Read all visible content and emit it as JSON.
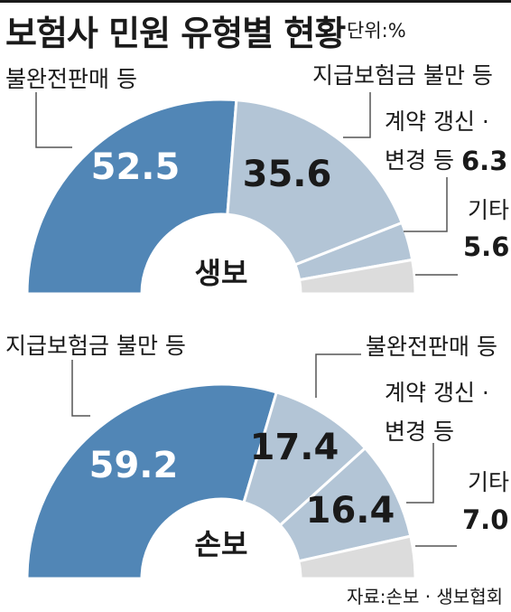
{
  "header": {
    "title": "보험사 민원 유형별 현황",
    "unit": "단위:%"
  },
  "source": "자료:손보 · 생보협회",
  "colors": {
    "dark": "#5186b6",
    "light": "#b3c5d6",
    "gray": "#dcdcdc",
    "line": "#555555"
  },
  "chart_data": [
    {
      "type": "pie",
      "center_label": "생보",
      "categories": [
        "불완전판매 등",
        "지급보험금 불만 등",
        "계약 갱신 · 변경 등",
        "기타"
      ],
      "values": [
        52.5,
        35.6,
        6.3,
        5.6
      ],
      "labels": {
        "a": "불완전판매 등",
        "b": "지급보험금 불만 등",
        "c1": "계약 갱신 ·",
        "c2": "변경 등",
        "d": "기타"
      },
      "value_text": {
        "a": "52.5",
        "b": "35.6",
        "c": "6.3",
        "d": "5.6"
      }
    },
    {
      "type": "pie",
      "center_label": "손보",
      "categories": [
        "지급보험금 불만 등",
        "불완전판매 등",
        "계약 갱신 · 변경 등",
        "기타"
      ],
      "values": [
        59.2,
        17.4,
        16.4,
        7.0
      ],
      "labels": {
        "a": "지급보험금 불만 등",
        "b": "불완전판매 등",
        "c1": "계약 갱신 ·",
        "c2": "변경 등",
        "d": "기타"
      },
      "value_text": {
        "a": "59.2",
        "b": "17.4",
        "c": "16.4",
        "d": "7.0"
      }
    }
  ]
}
